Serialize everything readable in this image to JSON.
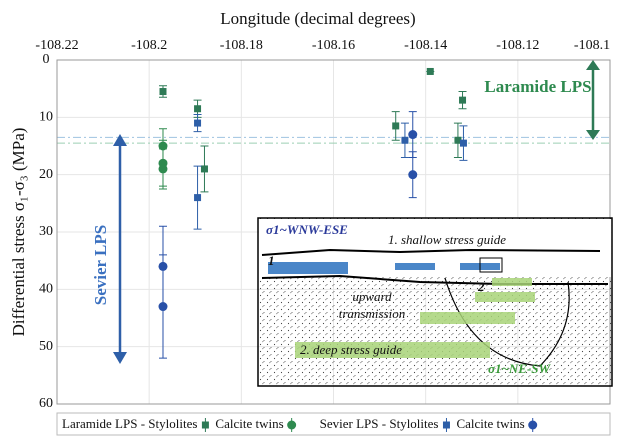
{
  "chart_data": {
    "type": "scatter",
    "title": "Longitude (decimal degrees)",
    "y_label": "Differential stress σ₁-σ₃ (MPa)",
    "xlim": [
      -108.22,
      -108.1
    ],
    "xticks": [
      -108.22,
      -108.2,
      -108.18,
      -108.16,
      -108.14,
      -108.12,
      -108.1
    ],
    "ylim": [
      0,
      60
    ],
    "yticks": [
      0,
      10,
      20,
      30,
      40,
      50,
      60
    ],
    "invert_y": true,
    "grid": true,
    "legend": "bottom",
    "hlines": [
      13.5,
      14.5
    ],
    "series": [
      {
        "name": "Laramide LPS - Stylolites",
        "color": "#2e7a56",
        "marker": "square",
        "x": [
          -108.197,
          -108.1895,
          -108.188,
          -108.1465,
          -108.139,
          -108.133,
          -108.132
        ],
        "values": [
          5.5,
          8.5,
          19,
          11.5,
          2,
          14,
          7
        ],
        "errors": [
          1,
          1.5,
          4,
          2.5,
          0,
          3,
          1.5
        ]
      },
      {
        "name": "Calcite twins",
        "color": "#2e8a4f",
        "marker": "circle",
        "x": [
          -108.197,
          -108.197,
          -108.197
        ],
        "values": [
          15,
          18,
          19
        ],
        "errors": [
          3,
          4,
          3.5
        ]
      },
      {
        "name": "Sevier LPS - Stylolites",
        "color": "#2e5fa8",
        "marker": "square",
        "x": [
          -108.1895,
          -108.1895,
          -108.1445,
          -108.1318
        ],
        "values": [
          11,
          24,
          14,
          14.5
        ],
        "errors": [
          1.5,
          5.5,
          3,
          3
        ]
      },
      {
        "name": "Calcite twins",
        "color": "#2850a8",
        "marker": "circle",
        "x": [
          -108.197,
          -108.197,
          -108.1428,
          -108.1428
        ],
        "values": [
          36,
          43,
          13,
          20
        ],
        "errors": [
          7,
          9,
          4,
          4
        ]
      }
    ],
    "annotations": [
      "Laramide LPS",
      "Sevier LPS"
    ],
    "inset_labels": [
      "σ1~WNW-ESE",
      "1. shallow stress guide",
      "1",
      "2",
      "upward",
      "transmission",
      "2. deep stress guide",
      "σ1~NE-SW"
    ]
  }
}
